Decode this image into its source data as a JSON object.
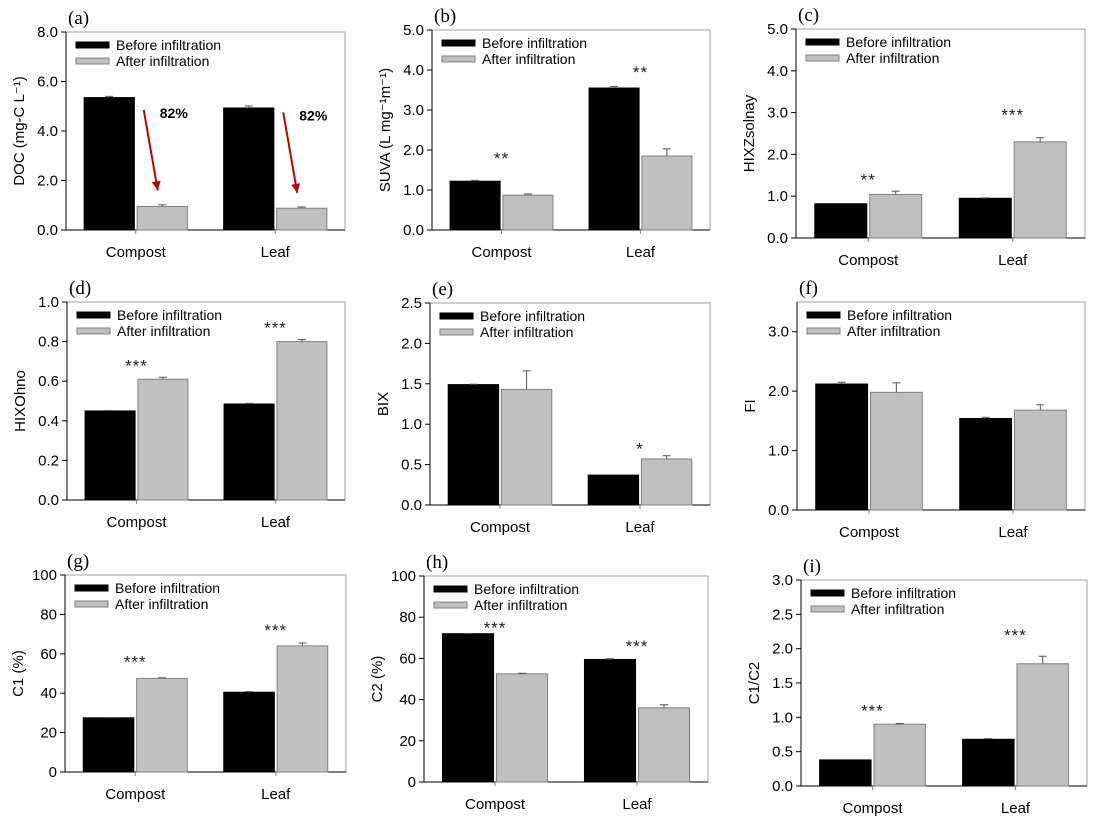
{
  "colors": {
    "before": "#000000",
    "after": "#c0c0c0",
    "after_stroke": "#808080",
    "frame": "#a0a0a0",
    "arrow": "#c00000"
  },
  "chart_data": [
    {
      "panel": "(a)",
      "type": "bar",
      "categories": [
        "Compost",
        "Leaf"
      ],
      "ylabel": "DOC (mg-C L⁻¹)",
      "ylim": [
        0,
        8
      ],
      "yticks": [
        0,
        2,
        4,
        6,
        8
      ],
      "tick_format": 1,
      "series": [
        {
          "name": "Before infiltration",
          "values": [
            5.35,
            4.93
          ],
          "errors": [
            0.05,
            0.08
          ]
        },
        {
          "name": "After infiltration",
          "values": [
            0.95,
            0.88
          ],
          "errors": [
            0.07,
            0.05
          ]
        }
      ],
      "significance": [],
      "annotations": [
        {
          "text": "82%",
          "category": 0,
          "arrow": true,
          "from": 4.85,
          "to": 1.6
        },
        {
          "text": "82%",
          "category": 1,
          "arrow": true,
          "from": 4.75,
          "to": 1.5
        }
      ]
    },
    {
      "panel": "(b)",
      "type": "bar",
      "categories": [
        "Compost",
        "Leaf"
      ],
      "ylabel": "SUVA (L mg⁻¹m⁻¹)",
      "ylim": [
        0,
        5
      ],
      "yticks": [
        0,
        1,
        2,
        3,
        4,
        5
      ],
      "tick_format": 1,
      "series": [
        {
          "name": "Before infiltration",
          "values": [
            1.22,
            3.55
          ],
          "errors": [
            0.02,
            0.04
          ]
        },
        {
          "name": "After infiltration",
          "values": [
            0.87,
            1.85
          ],
          "errors": [
            0.03,
            0.18
          ]
        }
      ],
      "significance": [
        {
          "text": "**",
          "category": 0,
          "y": 1.8
        },
        {
          "text": "**",
          "category": 1,
          "y": 3.95
        }
      ],
      "annotations": []
    },
    {
      "panel": "(c)",
      "type": "bar",
      "categories": [
        "Compost",
        "Leaf"
      ],
      "ylabel": "HIXZsolnay",
      "ylim": [
        0,
        5
      ],
      "yticks": [
        0,
        1,
        2,
        3,
        4,
        5
      ],
      "tick_format": 1,
      "series": [
        {
          "name": "Before infiltration",
          "values": [
            0.82,
            0.95
          ],
          "errors": [
            0.0,
            0.01
          ]
        },
        {
          "name": "After infiltration",
          "values": [
            1.04,
            2.3
          ],
          "errors": [
            0.08,
            0.1
          ]
        }
      ],
      "significance": [
        {
          "text": "**",
          "category": 0,
          "y": 1.4
        },
        {
          "text": "***",
          "category": 1,
          "y": 2.95
        }
      ],
      "annotations": []
    },
    {
      "panel": "(d)",
      "type": "bar",
      "categories": [
        "Compost",
        "Leaf"
      ],
      "ylabel": "HIXOhno",
      "ylim": [
        0,
        1
      ],
      "yticks": [
        0,
        0.2,
        0.4,
        0.6,
        0.8,
        1.0
      ],
      "tick_format": 1,
      "series": [
        {
          "name": "Before infiltration",
          "values": [
            0.45,
            0.485
          ],
          "errors": [
            0.002,
            0.003
          ]
        },
        {
          "name": "After infiltration",
          "values": [
            0.61,
            0.8
          ],
          "errors": [
            0.01,
            0.01
          ]
        }
      ],
      "significance": [
        {
          "text": "***",
          "category": 0,
          "y": 0.68
        },
        {
          "text": "***",
          "category": 1,
          "y": 0.87
        }
      ],
      "annotations": []
    },
    {
      "panel": "(e)",
      "type": "bar",
      "categories": [
        "Compost",
        "Leaf"
      ],
      "ylabel": "BIX",
      "ylim": [
        0,
        2.5
      ],
      "yticks": [
        0,
        0.5,
        1.0,
        1.5,
        2.0,
        2.5
      ],
      "tick_format": 1,
      "series": [
        {
          "name": "Before infiltration",
          "values": [
            1.49,
            0.37
          ],
          "errors": [
            0.005,
            0.0
          ]
        },
        {
          "name": "After infiltration",
          "values": [
            1.43,
            0.57
          ],
          "errors": [
            0.23,
            0.04
          ]
        }
      ],
      "significance": [
        {
          "text": "*",
          "category": 1,
          "y": 0.7
        }
      ],
      "annotations": []
    },
    {
      "panel": "(f)",
      "type": "bar",
      "categories": [
        "Compost",
        "Leaf"
      ],
      "ylabel": "FI",
      "ylim": [
        0,
        3.5
      ],
      "yticks": [
        0,
        1,
        2,
        3
      ],
      "tick_format": 1,
      "series": [
        {
          "name": "Before infiltration",
          "values": [
            2.12,
            1.54
          ],
          "errors": [
            0.03,
            0.02
          ]
        },
        {
          "name": "After infiltration",
          "values": [
            1.98,
            1.68
          ],
          "errors": [
            0.16,
            0.09
          ]
        }
      ],
      "significance": [],
      "annotations": []
    },
    {
      "panel": "(g)",
      "type": "bar",
      "categories": [
        "Compost",
        "Leaf"
      ],
      "ylabel": "C1 (%)",
      "ylim": [
        0,
        100
      ],
      "yticks": [
        0,
        20,
        40,
        60,
        80,
        100
      ],
      "tick_format": 0,
      "series": [
        {
          "name": "Before infiltration",
          "values": [
            27.5,
            40.5
          ],
          "errors": [
            0.1,
            0.3
          ]
        },
        {
          "name": "After infiltration",
          "values": [
            47.5,
            64
          ],
          "errors": [
            0.3,
            1.5
          ]
        }
      ],
      "significance": [
        {
          "text": "***",
          "category": 0,
          "y": 56
        },
        {
          "text": "***",
          "category": 1,
          "y": 72
        }
      ],
      "annotations": []
    },
    {
      "panel": "(h)",
      "type": "bar",
      "categories": [
        "Compost",
        "Leaf"
      ],
      "ylabel": "C2 (%)",
      "ylim": [
        0,
        100
      ],
      "yticks": [
        0,
        20,
        40,
        60,
        80,
        100
      ],
      "tick_format": 0,
      "series": [
        {
          "name": "Before infiltration",
          "values": [
            72,
            59.5
          ],
          "errors": [
            0.1,
            0.3
          ]
        },
        {
          "name": "After infiltration",
          "values": [
            52.5,
            36
          ],
          "errors": [
            0.3,
            1.5
          ]
        }
      ],
      "significance": [
        {
          "text": "***",
          "category": 0,
          "y": 75
        },
        {
          "text": "***",
          "category": 1,
          "y": 66
        }
      ],
      "annotations": []
    },
    {
      "panel": "(i)",
      "type": "bar",
      "categories": [
        "Compost",
        "Leaf"
      ],
      "ylabel": "C1/C2",
      "ylim": [
        0,
        3
      ],
      "yticks": [
        0,
        0.5,
        1.0,
        1.5,
        2.0,
        2.5,
        3.0
      ],
      "tick_format": 1,
      "series": [
        {
          "name": "Before infiltration",
          "values": [
            0.38,
            0.68
          ],
          "errors": [
            0.0,
            0.01
          ]
        },
        {
          "name": "After infiltration",
          "values": [
            0.9,
            1.78
          ],
          "errors": [
            0.01,
            0.11
          ]
        }
      ],
      "significance": [
        {
          "text": "***",
          "category": 0,
          "y": 1.1
        },
        {
          "text": "***",
          "category": 1,
          "y": 2.2
        }
      ],
      "annotations": []
    }
  ]
}
